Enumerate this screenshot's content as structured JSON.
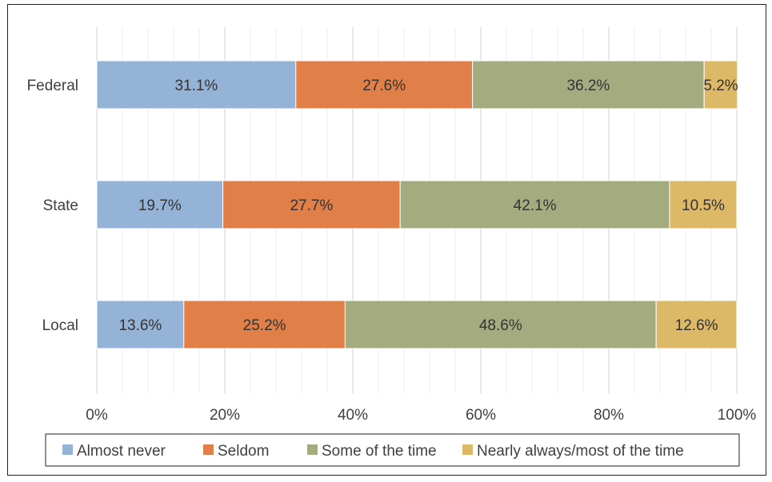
{
  "chart_data": {
    "type": "bar",
    "orientation": "horizontal",
    "stacked": "percent",
    "categories": [
      "Federal",
      "State",
      "Local"
    ],
    "series": [
      {
        "name": "Almost never",
        "color": "#95B3D7",
        "values": [
          31.1,
          19.7,
          13.6
        ]
      },
      {
        "name": "Seldom",
        "color": "#E07F48",
        "values": [
          27.6,
          27.7,
          25.2
        ]
      },
      {
        "name": "Some of the time",
        "color": "#A4AC7F",
        "values": [
          36.2,
          42.1,
          48.6
        ]
      },
      {
        "name": "Nearly always/most of the time",
        "color": "#DDB866",
        "values": [
          5.2,
          10.5,
          12.6
        ]
      }
    ],
    "value_format": "percent_one_decimal",
    "xlim": [
      0,
      100
    ],
    "xticks": [
      0,
      20,
      40,
      60,
      80,
      100
    ],
    "xtick_labels": [
      "0%",
      "20%",
      "40%",
      "60%",
      "80%",
      "100%"
    ],
    "grid": "vertical",
    "legend_position": "bottom",
    "title": "",
    "xlabel": "",
    "ylabel": ""
  }
}
